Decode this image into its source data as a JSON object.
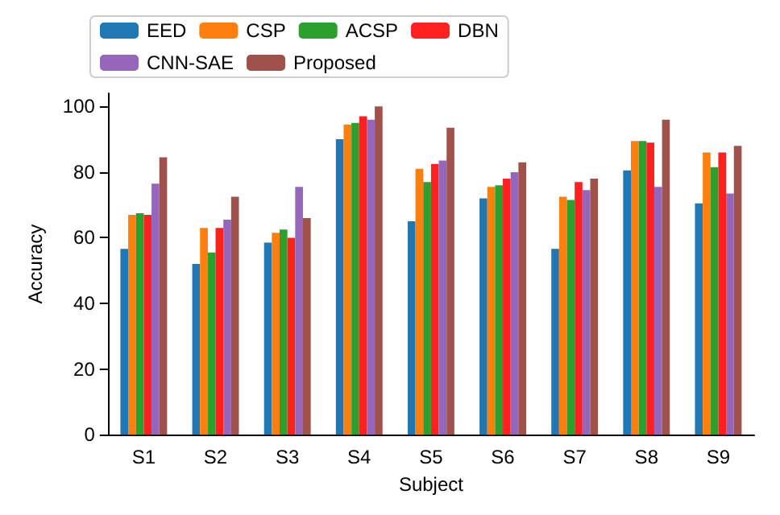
{
  "chart_data": {
    "type": "bar",
    "xlabel": "Subject",
    "ylabel": "Accuracy",
    "categories": [
      "S1",
      "S2",
      "S3",
      "S4",
      "S5",
      "S6",
      "S7",
      "S8",
      "S9"
    ],
    "series": [
      {
        "name": "EED",
        "color": "#1f77b4",
        "values": [
          56.6,
          52,
          58.5,
          90,
          65,
          72,
          56.6,
          80.5,
          70.5
        ]
      },
      {
        "name": "CSP",
        "color": "#ff7f0e",
        "values": [
          67,
          63,
          61.5,
          94.5,
          81,
          75.5,
          72.5,
          89.5,
          86
        ]
      },
      {
        "name": "ACSP",
        "color": "#2ca02c",
        "values": [
          67.5,
          55.5,
          62.5,
          95,
          77,
          76,
          71.5,
          89.5,
          81.5
        ]
      },
      {
        "name": "DBN",
        "color": "#ff2020",
        "values": [
          67,
          63,
          60,
          97,
          82.5,
          78,
          77,
          89,
          86
        ]
      },
      {
        "name": "CNN-SAE",
        "color": "#9467bd",
        "values": [
          76.5,
          65.5,
          75.5,
          96,
          83.5,
          80,
          74.5,
          75.5,
          73.5
        ]
      },
      {
        "name": "Proposed",
        "color": "#a0524a",
        "values": [
          84.5,
          72.5,
          66,
          100,
          93.5,
          83,
          78,
          96,
          88
        ]
      }
    ],
    "ylim": [
      0,
      104
    ],
    "yticks": [
      0,
      20,
      40,
      60,
      80,
      100
    ],
    "grid": false,
    "legend": "top left"
  }
}
